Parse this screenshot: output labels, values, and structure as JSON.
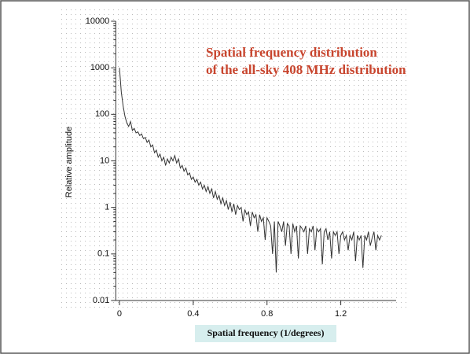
{
  "chart_data": {
    "type": "line",
    "title": [
      "Spatial frequency distribution",
      "of the all-sky 408 MHz distribution"
    ],
    "title_color": "#c8452e",
    "xlabel": "Spatial frequency (1/degrees)",
    "ylabel": "Relative amplitude",
    "ylog": true,
    "grid": true,
    "xlim": [
      -0.02,
      1.5
    ],
    "xticks": [
      0,
      0.4,
      0.8,
      1.2
    ],
    "ylim": [
      0.01,
      10000
    ],
    "yticks": [
      0.01,
      0.1,
      1,
      10,
      100,
      1000,
      10000
    ],
    "x": [
      0,
      0.01,
      0.02,
      0.03,
      0.04,
      0.05,
      0.06,
      0.07,
      0.08,
      0.09,
      0.1,
      0.11,
      0.12,
      0.13,
      0.14,
      0.15,
      0.16,
      0.17,
      0.18,
      0.19,
      0.2,
      0.21,
      0.22,
      0.23,
      0.24,
      0.25,
      0.26,
      0.27,
      0.28,
      0.29,
      0.3,
      0.31,
      0.32,
      0.33,
      0.34,
      0.35,
      0.36,
      0.37,
      0.38,
      0.39,
      0.4,
      0.41,
      0.42,
      0.43,
      0.44,
      0.45,
      0.46,
      0.47,
      0.48,
      0.49,
      0.5,
      0.51,
      0.52,
      0.53,
      0.54,
      0.55,
      0.56,
      0.57,
      0.58,
      0.59,
      0.6,
      0.61,
      0.62,
      0.63,
      0.64,
      0.65,
      0.66,
      0.67,
      0.68,
      0.69,
      0.7,
      0.71,
      0.72,
      0.73,
      0.74,
      0.75,
      0.76,
      0.77,
      0.78,
      0.79,
      0.8,
      0.81,
      0.82,
      0.83,
      0.84,
      0.85,
      0.86,
      0.87,
      0.88,
      0.89,
      0.9,
      0.91,
      0.92,
      0.93,
      0.94,
      0.95,
      0.96,
      0.97,
      0.98,
      0.99,
      1,
      1.01,
      1.02,
      1.03,
      1.04,
      1.05,
      1.06,
      1.07,
      1.08,
      1.09,
      1.1,
      1.11,
      1.12,
      1.13,
      1.14,
      1.15,
      1.16,
      1.17,
      1.18,
      1.19,
      1.2,
      1.21,
      1.22,
      1.23,
      1.24,
      1.25,
      1.26,
      1.27,
      1.28,
      1.29,
      1.3,
      1.31,
      1.32,
      1.33,
      1.34,
      1.35,
      1.36,
      1.37,
      1.38,
      1.39,
      1.4,
      1.41,
      1.42
    ],
    "series": [
      {
        "color": "#333333",
        "values": [
          1000,
          300,
          150,
          90,
          65,
          55,
          70,
          45,
          50,
          40,
          42,
          35,
          38,
          30,
          32,
          25,
          28,
          20,
          22,
          15,
          17,
          12,
          14,
          10,
          12,
          8,
          11,
          9,
          12,
          10,
          13,
          9,
          11,
          7,
          8,
          6,
          7,
          5,
          5.5,
          4,
          4.5,
          3.5,
          4,
          3,
          3.5,
          2.5,
          3,
          2.2,
          2.8,
          2,
          2.5,
          1.6,
          2.2,
          1.5,
          1.8,
          1.2,
          1.6,
          1.1,
          1.4,
          0.9,
          1.3,
          0.8,
          1.2,
          0.7,
          1.1,
          0.9,
          1,
          0.5,
          0.9,
          0.7,
          0.8,
          0.4,
          0.8,
          0.6,
          0.7,
          0.3,
          0.7,
          0.5,
          0.6,
          0.2,
          0.6,
          0.5,
          0.4,
          0.1,
          0.5,
          0.04,
          0.5,
          0.4,
          0.3,
          0.5,
          0.15,
          0.45,
          0.4,
          0.1,
          0.45,
          0.3,
          0.4,
          0.08,
          0.4,
          0.35,
          0.3,
          0.4,
          0.1,
          0.35,
          0.3,
          0.4,
          0.12,
          0.35,
          0.3,
          0.35,
          0.06,
          0.3,
          0.35,
          0.2,
          0.3,
          0.08,
          0.3,
          0.25,
          0.3,
          0.1,
          0.25,
          0.3,
          0.2,
          0.25,
          0.12,
          0.25,
          0.2,
          0.3,
          0.07,
          0.25,
          0.2,
          0.25,
          0.05,
          0.25,
          0.2,
          0.3,
          0.15,
          0.22,
          0.3,
          0.12,
          0.25,
          0.2,
          0.25
        ]
      }
    ]
  }
}
